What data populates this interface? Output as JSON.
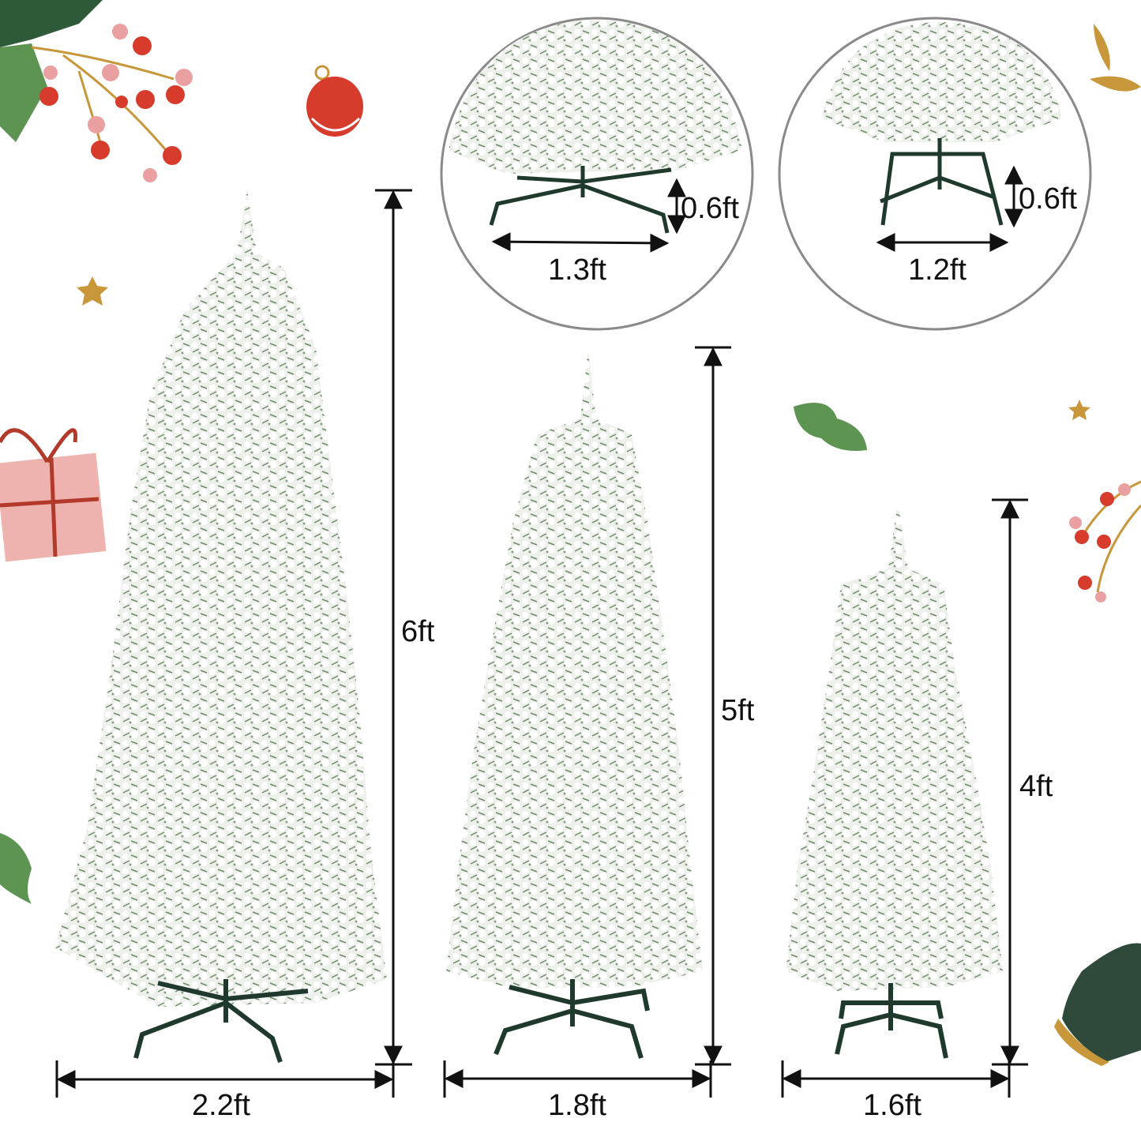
{
  "trees": [
    {
      "height_label": "6ft",
      "width_label": "2.2ft"
    },
    {
      "height_label": "5ft",
      "width_label": "1.8ft"
    },
    {
      "height_label": "4ft",
      "width_label": "1.6ft"
    }
  ],
  "stand_insets": [
    {
      "height_label": "0.6ft",
      "width_label": "1.3ft"
    },
    {
      "height_label": "0.6ft",
      "width_label": "1.2ft"
    }
  ],
  "colors": {
    "snow": "#f2f3f1",
    "needle_green": "#5f7d5c",
    "stand": "#1f3a2c",
    "berry": "#d63b2b",
    "holly": "#5d9451",
    "gold": "#c8973a"
  }
}
